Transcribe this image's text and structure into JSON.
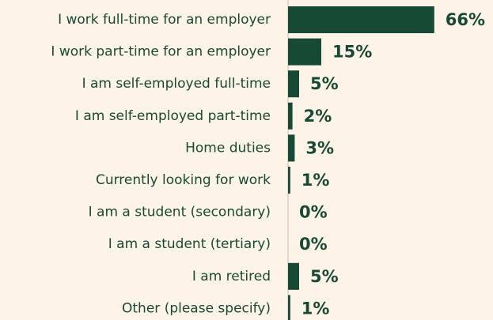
{
  "chart_data": {
    "type": "bar",
    "orientation": "horizontal",
    "categories": [
      "I work full-time for an employer",
      "I work part-time for an employer",
      "I am self-employed full-time",
      "I am self-employed part-time",
      "Home duties",
      "Currently looking for work",
      "I am a student (secondary)",
      "I am a student (tertiary)",
      "I am retired",
      "Other (please specify)"
    ],
    "values": [
      66,
      15,
      5,
      2,
      3,
      1,
      0,
      0,
      5,
      1
    ],
    "value_labels": [
      "66%",
      "15%",
      "5%",
      "2%",
      "3%",
      "1%",
      "0%",
      "0%",
      "5%",
      "1%"
    ],
    "color": "#174a35"
  }
}
